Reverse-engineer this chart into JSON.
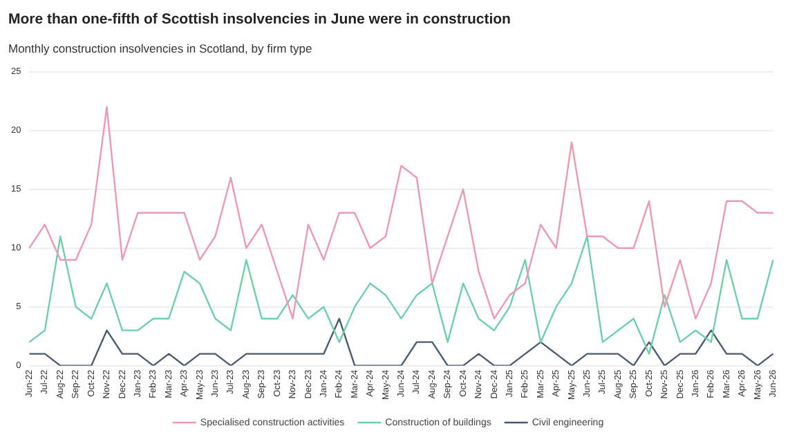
{
  "chart_data": {
    "type": "line",
    "title": "More than one-fifth of Scottish insolvencies in June were in construction",
    "subtitle": "Monthly construction insolvencies in Scotland, by firm type",
    "categories": [
      "Jun-22",
      "Jul-22",
      "Aug-22",
      "Sep-22",
      "Oct-22",
      "Nov-22",
      "Dec-22",
      "Jan-23",
      "Feb-23",
      "Mar-23",
      "Apr-23",
      "May-23",
      "Jun-23",
      "Jul-23",
      "Aug-23",
      "Sep-23",
      "Oct-23",
      "Nov-23",
      "Dec-23",
      "Jan-24",
      "Feb-24",
      "Mar-24",
      "Apr-24",
      "May-24",
      "Jun-24",
      "Jul-24",
      "Aug-24",
      "Sep-24",
      "Oct-24",
      "Nov-24",
      "Dec-24",
      "Jan-25",
      "Feb-25",
      "Mar-25",
      "Apr-25",
      "May-25",
      "Jun-25",
      "Jul-25",
      "Aug-25",
      "Sep-25",
      "Oct-25",
      "Nov-25",
      "Dec-25",
      "Jan-26",
      "Feb-26",
      "Mar-26",
      "Apr-26",
      "May-26",
      "Jun-26"
    ],
    "series": [
      {
        "name": "Specialised construction activities",
        "color": "#eb9ab0",
        "values": [
          10,
          12,
          9,
          9,
          12,
          22,
          9,
          13,
          13,
          13,
          13,
          9,
          11,
          16,
          10,
          12,
          8,
          4,
          12,
          9,
          13,
          13,
          10,
          11,
          17,
          16,
          7,
          11,
          15,
          8,
          4,
          6,
          7,
          12,
          10,
          19,
          11,
          11,
          10,
          10,
          14,
          5,
          9,
          4,
          7,
          14,
          14,
          13,
          13
        ]
      },
      {
        "name": "Construction of buildings",
        "color": "#6fcfa8",
        "values": [
          2,
          3,
          11,
          5,
          4,
          7,
          3,
          3,
          4,
          4,
          8,
          7,
          4,
          3,
          9,
          4,
          4,
          6,
          4,
          5,
          2,
          5,
          7,
          6,
          4,
          6,
          7,
          2,
          7,
          4,
          3,
          5,
          9,
          2,
          5,
          7,
          11,
          2,
          3,
          4,
          1,
          6,
          2,
          3,
          2,
          9,
          4,
          4,
          9
        ]
      },
      {
        "name": "Civil engineering",
        "color": "#4a5a70",
        "values": [
          1,
          1,
          0,
          0,
          0,
          3,
          1,
          1,
          0,
          1,
          0,
          1,
          1,
          0,
          1,
          1,
          1,
          1,
          1,
          1,
          4,
          0,
          0,
          0,
          0,
          2,
          2,
          0,
          0,
          1,
          0,
          0,
          1,
          2,
          1,
          0,
          1,
          1,
          1,
          0,
          2,
          0,
          1,
          1,
          3,
          1,
          1,
          0,
          1
        ]
      }
    ],
    "ylim": [
      0,
      25
    ],
    "yticks": [
      0,
      5,
      10,
      15,
      20,
      25
    ],
    "grid": "y",
    "legend": "bottom",
    "marker": "none",
    "line_style": "solid"
  }
}
